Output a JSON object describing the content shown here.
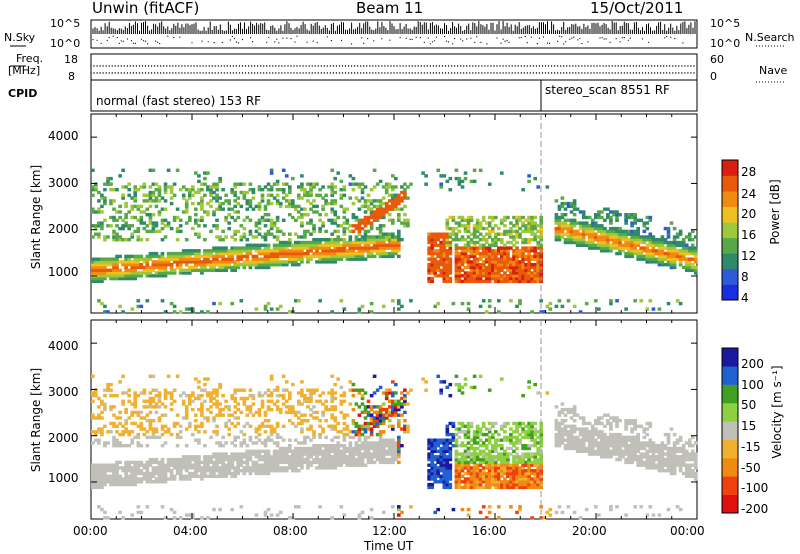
{
  "header": {
    "station": "Unwin (fitACF)",
    "beam": "Beam 11",
    "date": "15/Oct/2011"
  },
  "panel_labels": {
    "nsky": "N.Sky",
    "nsearch": "N.Search",
    "freq": "Freq.",
    "freq_unit": "[MHz]",
    "nave": "Nave",
    "cpid": "CPID",
    "slant_range": "Slant Range [km]"
  },
  "cpid_modes": [
    {
      "label": "normal (fast stereo) 153 RF"
    },
    {
      "label": "stereo_scan 8551 RF"
    }
  ],
  "colors": {
    "power_scale": [
      "#1a2ee0",
      "#2d5bd8",
      "#2f8a6a",
      "#57a847",
      "#9ec83a",
      "#f0c020",
      "#f08a10",
      "#e85a0a",
      "#d82010"
    ],
    "velocity_scale": [
      "#e01010",
      "#f04010",
      "#f08a10",
      "#f0b030",
      "#c0c0b8",
      "#8fd040",
      "#40a020",
      "#2060d0",
      "#1a1aa0"
    ]
  },
  "chart_data": [
    {
      "type": "line",
      "name": "noise",
      "yleft_ticks": [
        "10^5",
        "10^0"
      ],
      "yright_ticks": [
        "10^5",
        "10^0"
      ]
    },
    {
      "type": "line",
      "name": "frequency",
      "yleft_ticks": [
        "18",
        "8"
      ],
      "yright_ticks": [
        "60",
        "0"
      ]
    },
    {
      "type": "heatmap",
      "name": "power",
      "xlabel": "Time UT",
      "ylabel": "Slant Range [km]",
      "xlim": [
        0,
        24
      ],
      "ylim": [
        200,
        4500
      ],
      "yticks": [
        1000,
        2000,
        3000,
        4000
      ],
      "colorbar": {
        "label": "Power [dB]",
        "ticks": [
          "4",
          "8",
          "12",
          "16",
          "20",
          "24",
          "28"
        ],
        "range": [
          0,
          30
        ]
      }
    },
    {
      "type": "heatmap",
      "name": "velocity",
      "xlabel": "Time UT",
      "ylabel": "Slant Range [km]",
      "xlim": [
        0,
        24
      ],
      "ylim": [
        200,
        4500
      ],
      "yticks": [
        1000,
        2000,
        3000,
        4000
      ],
      "colorbar": {
        "label": "Velocity [m s⁻¹]",
        "ticks": [
          "-200",
          "-100",
          "-50",
          "-15",
          "15",
          "50",
          "100",
          "200"
        ],
        "range": [
          -250,
          250
        ]
      }
    }
  ],
  "xaxis": {
    "label": "Time UT",
    "ticks": [
      "00:00",
      "04:00",
      "08:00",
      "12:00",
      "16:00",
      "20:00",
      "00:00"
    ]
  }
}
